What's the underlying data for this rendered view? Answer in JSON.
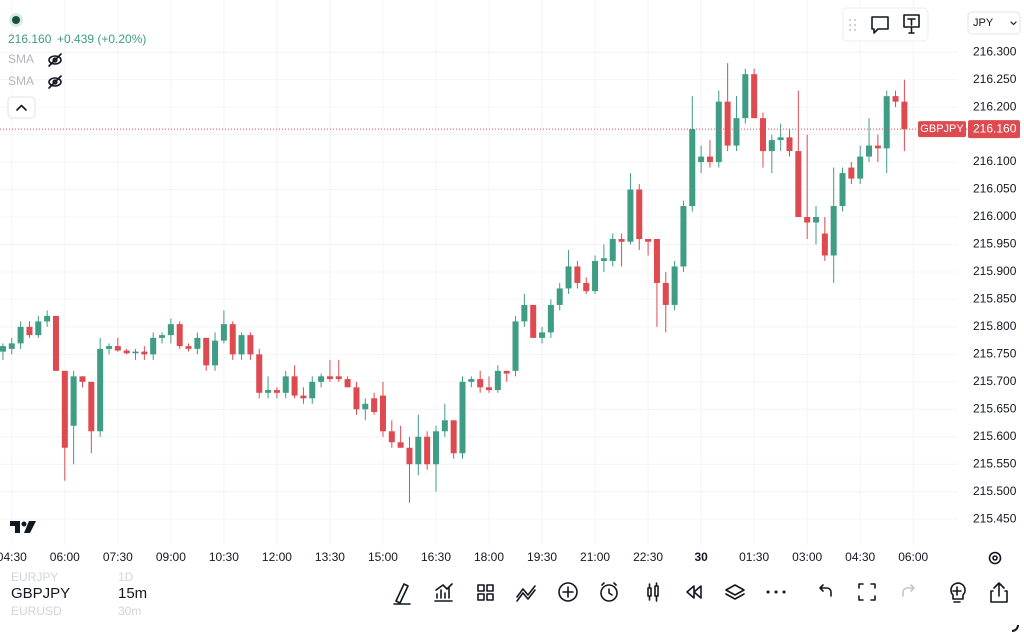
{
  "header": {
    "price": "216.160",
    "change": "+0.439 (+0.20%)"
  },
  "indicators": [
    "SMA",
    "SMA"
  ],
  "currency": "JPY",
  "watchlist": [
    {
      "symbol": "EURJPY",
      "interval": "1D"
    },
    {
      "symbol": "GBPJPY",
      "interval": "15m"
    },
    {
      "symbol": "EURUSD",
      "interval": "30m"
    }
  ],
  "chart_data": {
    "type": "candlestick",
    "up_color": "#3f9c85",
    "down_color": "#dd4a50",
    "grid": true,
    "x": [
      255,
      270,
      285,
      300,
      315,
      330,
      345,
      360,
      375,
      390,
      405,
      420,
      435,
      450,
      465,
      480,
      495,
      510,
      525,
      540,
      555,
      570,
      585,
      600,
      615,
      630,
      645,
      660,
      675,
      690,
      705,
      720,
      735,
      750,
      765,
      780,
      795,
      810,
      825,
      840,
      855,
      870,
      885,
      900,
      915,
      930,
      945,
      960,
      975,
      990,
      1005,
      1020,
      1035,
      1050,
      1065,
      1080,
      1095,
      1110,
      1125,
      1140,
      1155,
      1170,
      1185,
      1200,
      1215,
      1230,
      1245,
      1260,
      1275,
      1290,
      1305,
      1320,
      1335,
      1350,
      1365,
      1380,
      1395,
      1410,
      1425,
      1440,
      1455,
      1470,
      1485,
      1500,
      1515,
      1530,
      1545,
      1560,
      1575,
      1590,
      1605,
      1620,
      1635,
      1650,
      1665,
      1680,
      1695,
      1710,
      1725,
      1740,
      1755,
      1770,
      1785
    ],
    "open": [
      215.755,
      215.76,
      215.77,
      215.8,
      215.785,
      215.81,
      215.82,
      215.72,
      215.62,
      215.71,
      215.7,
      215.61,
      215.76,
      215.765,
      215.757,
      215.752,
      215.755,
      215.75,
      215.78,
      215.785,
      215.805,
      215.765,
      215.76,
      215.78,
      215.73,
      215.775,
      215.805,
      215.75,
      215.785,
      215.75,
      215.68,
      215.685,
      215.68,
      215.71,
      215.675,
      215.67,
      215.7,
      215.71,
      215.71,
      215.705,
      215.69,
      215.65,
      215.67,
      215.675,
      215.61,
      215.59,
      215.58,
      215.55,
      215.6,
      215.55,
      215.61,
      215.63,
      215.57,
      215.7,
      215.705,
      215.69,
      215.685,
      215.72,
      215.72,
      215.81,
      215.84,
      215.78,
      215.79,
      215.84,
      215.87,
      215.91,
      215.88,
      215.865,
      215.92,
      215.92,
      215.96,
      215.955,
      216.05,
      215.96,
      215.96,
      215.88,
      215.84,
      215.91,
      216.02,
      216.1,
      216.11,
      216.1,
      216.21,
      216.13,
      216.18,
      216.26,
      216.18,
      216.12,
      216.14,
      216.145,
      216.12,
      216.0,
      215.99,
      215.97,
      215.93,
      216.02,
      216.09,
      216.07,
      216.11,
      216.13,
      216.125,
      216.22,
      216.21
    ],
    "high": [
      215.77,
      215.78,
      215.81,
      215.81,
      215.82,
      215.83,
      215.82,
      215.72,
      215.72,
      215.71,
      215.7,
      215.78,
      215.77,
      215.78,
      215.76,
      215.76,
      215.765,
      215.79,
      215.79,
      215.815,
      215.81,
      215.77,
      215.79,
      215.78,
      215.79,
      215.83,
      215.81,
      215.79,
      215.79,
      215.76,
      215.71,
      215.69,
      215.72,
      215.73,
      215.69,
      215.71,
      215.715,
      215.74,
      215.74,
      215.71,
      215.7,
      215.67,
      215.68,
      215.7,
      215.63,
      215.62,
      215.6,
      215.64,
      215.61,
      215.62,
      215.66,
      215.63,
      215.71,
      215.71,
      215.72,
      215.71,
      215.73,
      215.72,
      215.82,
      215.86,
      215.84,
      215.8,
      215.85,
      215.88,
      215.94,
      215.92,
      215.89,
      215.93,
      215.95,
      215.97,
      215.97,
      216.08,
      216.06,
      215.96,
      215.96,
      215.9,
      215.92,
      216.03,
      216.22,
      216.13,
      216.14,
      216.23,
      216.28,
      216.22,
      216.27,
      216.27,
      216.19,
      216.15,
      216.17,
      216.16,
      216.23,
      216.15,
      216.02,
      216.0,
      216.09,
      216.09,
      216.1,
      216.13,
      216.18,
      216.15,
      216.23,
      216.23,
      216.25
    ],
    "low": [
      215.74,
      215.75,
      215.76,
      215.78,
      215.78,
      215.8,
      215.72,
      215.52,
      215.55,
      215.69,
      215.57,
      215.6,
      215.75,
      215.755,
      215.75,
      215.74,
      215.74,
      215.74,
      215.77,
      215.77,
      215.76,
      215.755,
      215.75,
      215.72,
      215.72,
      215.77,
      215.74,
      215.74,
      215.74,
      215.67,
      215.67,
      215.67,
      215.67,
      215.67,
      215.66,
      215.66,
      215.69,
      215.7,
      215.7,
      215.69,
      215.64,
      215.63,
      215.64,
      215.6,
      215.58,
      215.58,
      215.48,
      215.53,
      215.54,
      215.5,
      215.6,
      215.56,
      215.56,
      215.69,
      215.68,
      215.68,
      215.68,
      215.7,
      215.71,
      215.8,
      215.78,
      215.77,
      215.78,
      215.83,
      215.86,
      215.87,
      215.86,
      215.86,
      215.9,
      215.91,
      215.91,
      215.95,
      215.94,
      215.93,
      215.8,
      215.79,
      215.83,
      215.9,
      216.01,
      216.08,
      216.09,
      216.09,
      216.12,
      216.12,
      216.17,
      216.18,
      216.09,
      216.08,
      216.12,
      216.11,
      216.0,
      215.96,
      215.95,
      215.92,
      215.88,
      216.01,
      216.06,
      216.06,
      216.1,
      216.1,
      216.08,
      216.2,
      216.12
    ],
    "close": [
      215.765,
      215.77,
      215.8,
      215.785,
      215.81,
      215.82,
      215.72,
      215.58,
      215.71,
      215.7,
      215.61,
      215.76,
      215.765,
      215.757,
      215.752,
      215.755,
      215.75,
      215.78,
      215.785,
      215.805,
      215.765,
      215.76,
      215.78,
      215.73,
      215.775,
      215.805,
      215.75,
      215.785,
      215.75,
      215.68,
      215.685,
      215.68,
      215.71,
      215.675,
      215.67,
      215.7,
      215.71,
      215.705,
      215.705,
      215.69,
      215.65,
      215.66,
      215.645,
      215.61,
      215.59,
      215.58,
      215.55,
      215.6,
      215.55,
      215.61,
      215.63,
      215.57,
      215.7,
      215.705,
      215.69,
      215.685,
      215.72,
      215.715,
      215.81,
      215.84,
      215.78,
      215.79,
      215.84,
      215.87,
      215.91,
      215.88,
      215.865,
      215.92,
      215.925,
      215.96,
      215.955,
      216.05,
      215.96,
      215.955,
      215.88,
      215.84,
      215.91,
      216.02,
      216.16,
      216.11,
      216.1,
      216.21,
      216.13,
      216.18,
      216.26,
      216.18,
      216.12,
      216.14,
      216.145,
      216.12,
      216.0,
      215.99,
      216.0,
      215.93,
      216.02,
      216.08,
      216.07,
      216.11,
      216.13,
      216.125,
      216.22,
      216.21,
      216.16
    ],
    "xlim": [
      250,
      1876
    ],
    "xticks": [
      {
        "value": 270,
        "label": "04:30"
      },
      {
        "value": 360,
        "label": "06:00"
      },
      {
        "value": 450,
        "label": "07:30"
      },
      {
        "value": 540,
        "label": "09:00"
      },
      {
        "value": 630,
        "label": "10:30"
      },
      {
        "value": 720,
        "label": "12:00"
      },
      {
        "value": 810,
        "label": "13:30"
      },
      {
        "value": 900,
        "label": "15:00"
      },
      {
        "value": 990,
        "label": "16:30"
      },
      {
        "value": 1080,
        "label": "18:00"
      },
      {
        "value": 1170,
        "label": "19:30"
      },
      {
        "value": 1260,
        "label": "21:00"
      },
      {
        "value": 1350,
        "label": "22:30"
      },
      {
        "value": 1440,
        "label": "30"
      },
      {
        "value": 1530,
        "label": "01:30"
      },
      {
        "value": 1620,
        "label": "03:00"
      },
      {
        "value": 1710,
        "label": "04:30"
      },
      {
        "value": 1800,
        "label": "06:00"
      }
    ],
    "ylim": [
      215.403,
      216.395
    ],
    "yticks": [
      {
        "value": 216.3,
        "label": "216.300"
      },
      {
        "value": 216.25,
        "label": "216.250"
      },
      {
        "value": 216.2,
        "label": "216.200"
      },
      {
        "value": 216.15,
        "label": "216.150"
      },
      {
        "value": 216.1,
        "label": "216.100"
      },
      {
        "value": 216.05,
        "label": "216.050"
      },
      {
        "value": 216.0,
        "label": "216.000"
      },
      {
        "value": 215.95,
        "label": "215.950"
      },
      {
        "value": 215.9,
        "label": "215.900"
      },
      {
        "value": 215.85,
        "label": "215.850"
      },
      {
        "value": 215.8,
        "label": "215.800"
      },
      {
        "value": 215.75,
        "label": "215.750"
      },
      {
        "value": 215.7,
        "label": "215.700"
      },
      {
        "value": 215.65,
        "label": "215.650"
      },
      {
        "value": 215.6,
        "label": "215.600"
      },
      {
        "value": 215.55,
        "label": "215.550"
      },
      {
        "value": 215.5,
        "label": "215.500"
      },
      {
        "value": 215.45,
        "label": "215.450"
      }
    ],
    "price_line": {
      "name": "GBPJPY",
      "value": 216.16,
      "label": "216.160"
    }
  }
}
